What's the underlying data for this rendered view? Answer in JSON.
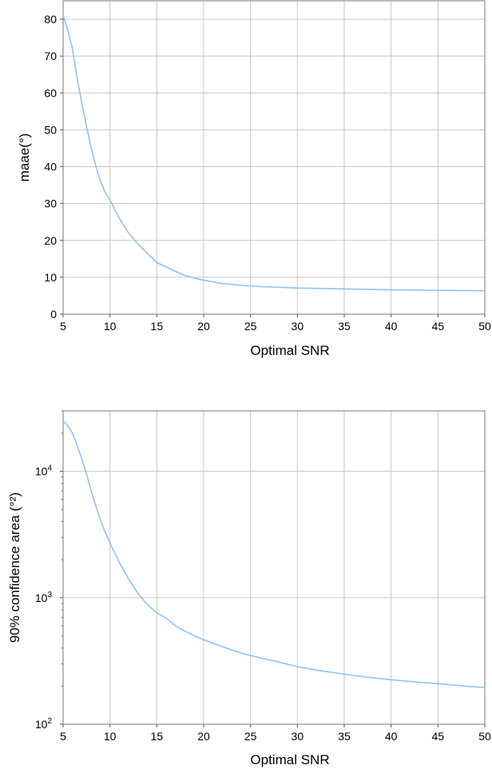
{
  "chart_data": [
    {
      "type": "line",
      "xlabel": "Optimal SNR",
      "ylabel": "maae(°)",
      "xlim": [
        5,
        50
      ],
      "ylim": [
        0,
        85
      ],
      "xticks": [
        "5",
        "10",
        "15",
        "20",
        "25",
        "30",
        "35",
        "40",
        "45",
        "50"
      ],
      "yticks": [
        "0",
        "10",
        "20",
        "30",
        "40",
        "50",
        "60",
        "70",
        "80"
      ],
      "grid": true,
      "color": "#90c2f5",
      "series": [
        {
          "x": [
            5,
            5.5,
            6,
            6.5,
            7,
            7.5,
            8,
            8.5,
            9,
            9.5,
            10,
            11,
            12,
            13,
            14,
            15,
            16,
            17,
            18,
            19,
            20,
            22,
            24,
            26,
            28,
            30,
            32,
            34,
            36,
            38,
            40,
            42,
            44,
            46,
            48,
            50
          ],
          "y": [
            81,
            77,
            72,
            64,
            57,
            51,
            45,
            40,
            36,
            33,
            31,
            26,
            22,
            19,
            16.5,
            14,
            12.8,
            11.6,
            10.5,
            9.8,
            9.2,
            8.3,
            7.8,
            7.5,
            7.3,
            7.1,
            7.0,
            6.9,
            6.8,
            6.7,
            6.6,
            6.55,
            6.5,
            6.45,
            6.4,
            6.35
          ]
        }
      ]
    },
    {
      "type": "line",
      "xlabel": "Optimal SNR",
      "ylabel": "90% confidence area (°²)",
      "yscale": "log",
      "xlim": [
        5,
        50
      ],
      "ylim": [
        100,
        30000
      ],
      "xticks": [
        "5",
        "10",
        "15",
        "20",
        "25",
        "30",
        "35",
        "40",
        "45",
        "50"
      ],
      "yticks": [
        {
          "base": "10",
          "exp": "2",
          "value": 100
        },
        {
          "base": "10",
          "exp": "3",
          "value": 1000
        },
        {
          "base": "10",
          "exp": "4",
          "value": 10000
        }
      ],
      "grid": true,
      "color": "#90c2f5",
      "series": [
        {
          "x": [
            5,
            5.5,
            6,
            6.5,
            7,
            7.5,
            8,
            8.5,
            9,
            9.5,
            10,
            11,
            12,
            13,
            14,
            15,
            16,
            17,
            18,
            19,
            20,
            22,
            24,
            26,
            28,
            30,
            32,
            34,
            36,
            38,
            40,
            42,
            44,
            46,
            48,
            50
          ],
          "y": [
            25000,
            23000,
            20000,
            16000,
            12500,
            9500,
            7000,
            5300,
            4100,
            3300,
            2700,
            1900,
            1400,
            1080,
            880,
            760,
            690,
            600,
            545,
            500,
            465,
            410,
            365,
            335,
            310,
            285,
            268,
            255,
            243,
            233,
            225,
            218,
            212,
            206,
            200,
            195
          ]
        }
      ]
    }
  ]
}
